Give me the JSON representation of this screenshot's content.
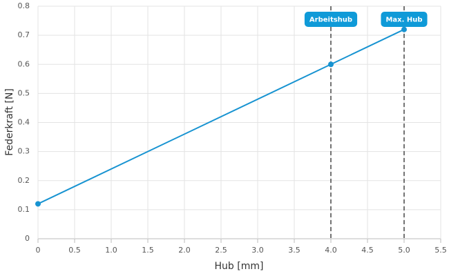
{
  "chart_data": {
    "type": "line",
    "x_label": "Hub [mm]",
    "y_label": "Federkraft [N]",
    "x": [
      0,
      4,
      5
    ],
    "series": [
      {
        "color": "#1793d1",
        "values": [
          0.12,
          0.6,
          0.72
        ]
      }
    ],
    "xlim": [
      0,
      5.5
    ],
    "xticks": [
      0,
      0.5,
      {
        "value": 1,
        "label": "1.0"
      },
      1.5,
      {
        "value": 2,
        "label": "2.0"
      },
      2.5,
      {
        "value": 3,
        "label": "3.0"
      },
      3.5,
      {
        "value": 4,
        "label": "4.0"
      },
      4.5,
      {
        "value": 5,
        "label": "5.0"
      },
      5.5
    ],
    "ylim": [
      0,
      0.8
    ],
    "yticks": [
      0,
      0.1,
      0.2,
      0.3,
      0.4,
      0.5,
      0.6,
      0.7,
      0.8
    ],
    "grid": true,
    "markers": [
      {
        "x": 4,
        "label": "Arbeitshub",
        "color": "#0f9ad8"
      },
      {
        "x": 5,
        "label": "Max. Hub",
        "color": "#0f9ad8"
      }
    ]
  }
}
